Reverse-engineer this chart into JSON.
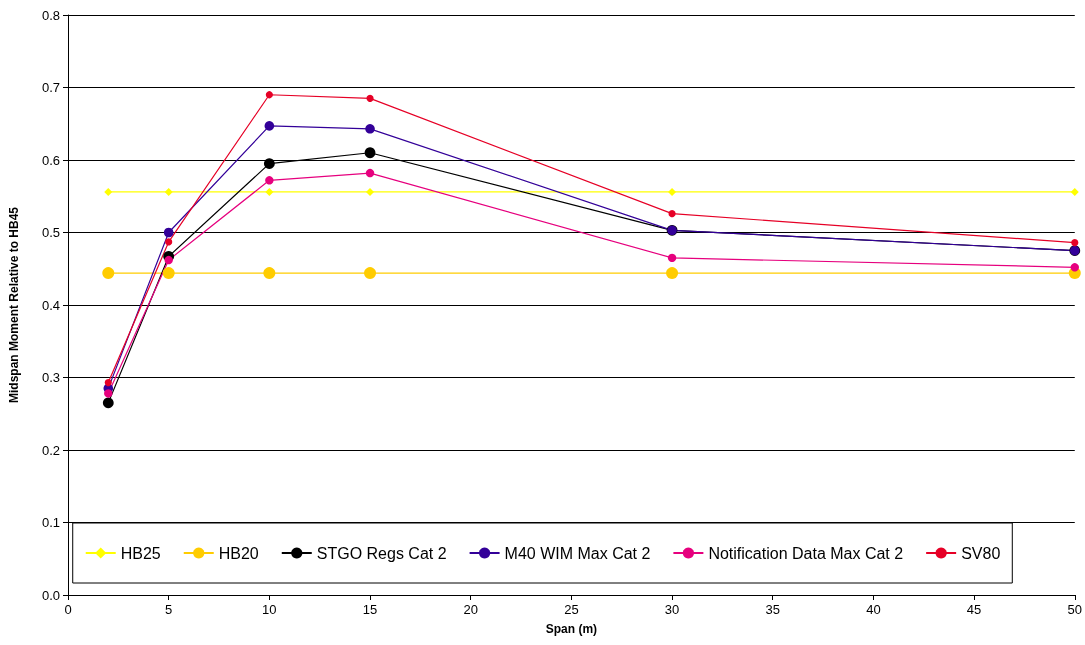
{
  "chart_data": {
    "type": "line",
    "xlabel": "Span (m)",
    "ylabel": "Midspan Moment Relative to HB45",
    "x": [
      2,
      5,
      10,
      15,
      30,
      50
    ],
    "series": [
      {
        "name": "HB25",
        "color": "#ffff00",
        "marker": "diamond",
        "values": [
          0.556,
          0.556,
          0.556,
          0.556,
          0.556,
          0.556
        ]
      },
      {
        "name": "HB20",
        "color": "#ffcc00",
        "marker": "circle",
        "values": [
          0.444,
          0.444,
          0.444,
          0.444,
          0.444,
          0.444
        ]
      },
      {
        "name": "STGO Regs Cat 2",
        "color": "#000000",
        "marker": "circle",
        "values": [
          0.265,
          0.467,
          0.595,
          0.61,
          0.503,
          0.475
        ]
      },
      {
        "name": "M40 WIM Max Cat 2",
        "color": "#330099",
        "marker": "circle",
        "values": [
          0.285,
          0.5,
          0.647,
          0.643,
          0.503,
          0.475
        ]
      },
      {
        "name": "Notification Data Max Cat 2",
        "color": "#e6007e",
        "marker": "circle",
        "values": [
          0.278,
          0.462,
          0.572,
          0.582,
          0.465,
          0.452
        ]
      },
      {
        "name": "SV80",
        "color": "#e60026",
        "marker": "circle",
        "values": [
          0.293,
          0.487,
          0.69,
          0.685,
          0.526,
          0.486
        ]
      }
    ],
    "xlim": [
      0,
      50
    ],
    "xticks": [
      0,
      5,
      10,
      15,
      20,
      25,
      30,
      35,
      40,
      45,
      50
    ],
    "ylim": [
      0,
      0.8
    ],
    "yticks": [
      {
        "value": 0,
        "label": "0.0"
      },
      {
        "value": 0.1,
        "label": "0.1"
      },
      {
        "value": 0.2,
        "label": "0.2"
      },
      {
        "value": 0.3,
        "label": "0.3"
      },
      {
        "value": 0.4,
        "label": "0.4"
      },
      {
        "value": 0.5,
        "label": "0.5"
      },
      {
        "value": 0.6,
        "label": "0.6"
      },
      {
        "value": 0.7,
        "label": "0.7"
      },
      {
        "value": 0.8,
        "label": "0.8"
      }
    ],
    "grid": "y",
    "legend": "bottom"
  }
}
